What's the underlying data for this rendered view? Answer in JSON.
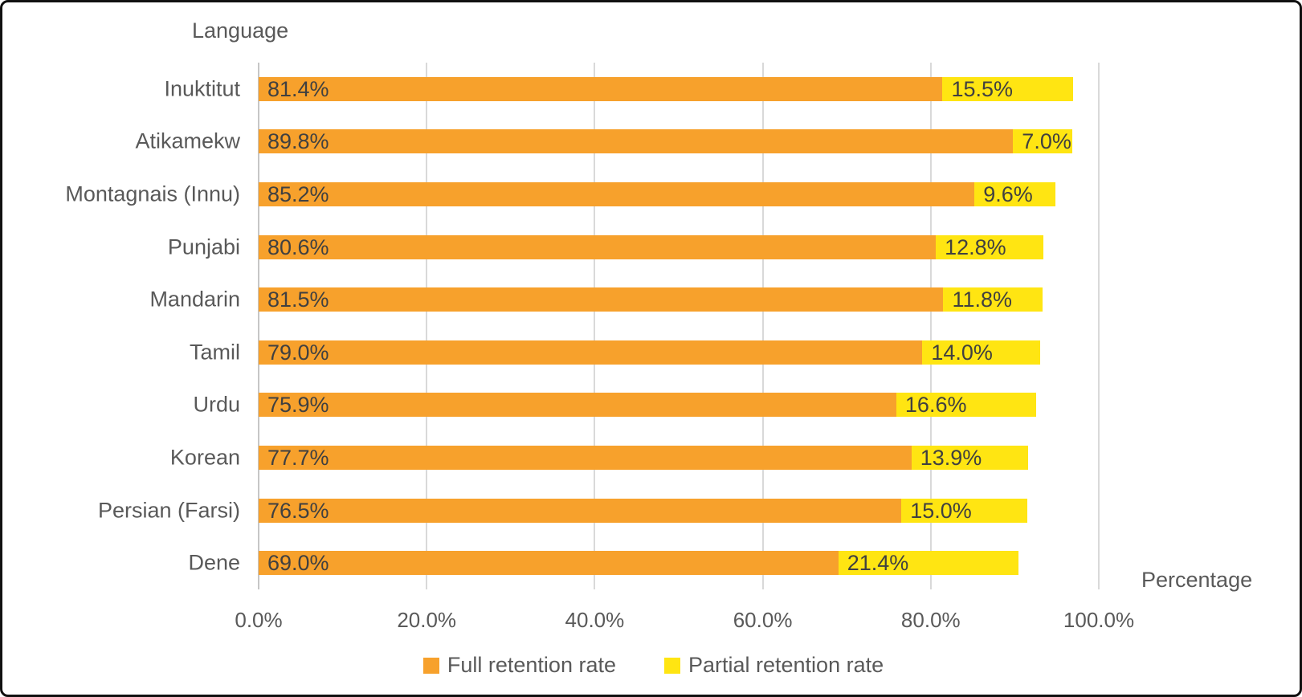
{
  "chart_data": {
    "type": "bar",
    "orientation": "horizontal",
    "stacked": true,
    "grid": true,
    "legend_position": "bottom",
    "y_axis_title": "Language",
    "x_axis_title": "Percentage",
    "xlim": [
      0,
      100
    ],
    "x_ticks": [
      "0.0%",
      "20.0%",
      "40.0%",
      "60.0%",
      "80.0%",
      "100.0%"
    ],
    "categories": [
      "Inuktitut",
      "Atikamekw",
      "Montagnais (Innu)",
      "Punjabi",
      "Mandarin",
      "Tamil",
      "Urdu",
      "Korean",
      "Persian (Farsi)",
      "Dene"
    ],
    "series": [
      {
        "name": "Full retention rate",
        "color": "#F7A12C",
        "values": [
          81.4,
          89.8,
          85.2,
          80.6,
          81.5,
          79.0,
          75.9,
          77.7,
          76.5,
          69.0
        ],
        "labels": [
          "81.4%",
          "89.8%",
          "85.2%",
          "80.6%",
          "81.5%",
          "79.0%",
          "75.9%",
          "77.7%",
          "76.5%",
          "69.0%"
        ]
      },
      {
        "name": "Partial retention rate",
        "color": "#FFE512",
        "values": [
          15.5,
          7.0,
          9.6,
          12.8,
          11.8,
          14.0,
          16.6,
          13.9,
          15.0,
          21.4
        ],
        "labels": [
          "15.5%",
          "7.0%",
          "9.6%",
          "12.8%",
          "11.8%",
          "14.0%",
          "16.6%",
          "13.9%",
          "15.0%",
          "21.4%"
        ]
      }
    ]
  },
  "colors": {
    "grid": "#d9d9d9",
    "axis_line": "#c6c6c6",
    "axis_text": "#595959",
    "value_text": "#404040",
    "frame_border": "#111111"
  }
}
